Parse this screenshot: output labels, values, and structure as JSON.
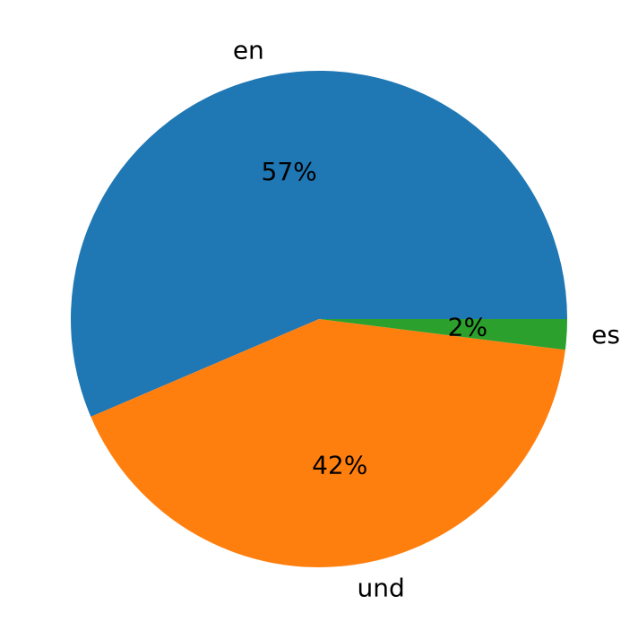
{
  "chart_data": {
    "type": "pie",
    "categories": [
      "en",
      "und",
      "es"
    ],
    "values": [
      57,
      42,
      2
    ],
    "value_labels": [
      "57%",
      "42%",
      "2%"
    ],
    "colors": [
      "#1f77b4",
      "#ff7f0e",
      "#2ca02c"
    ]
  }
}
